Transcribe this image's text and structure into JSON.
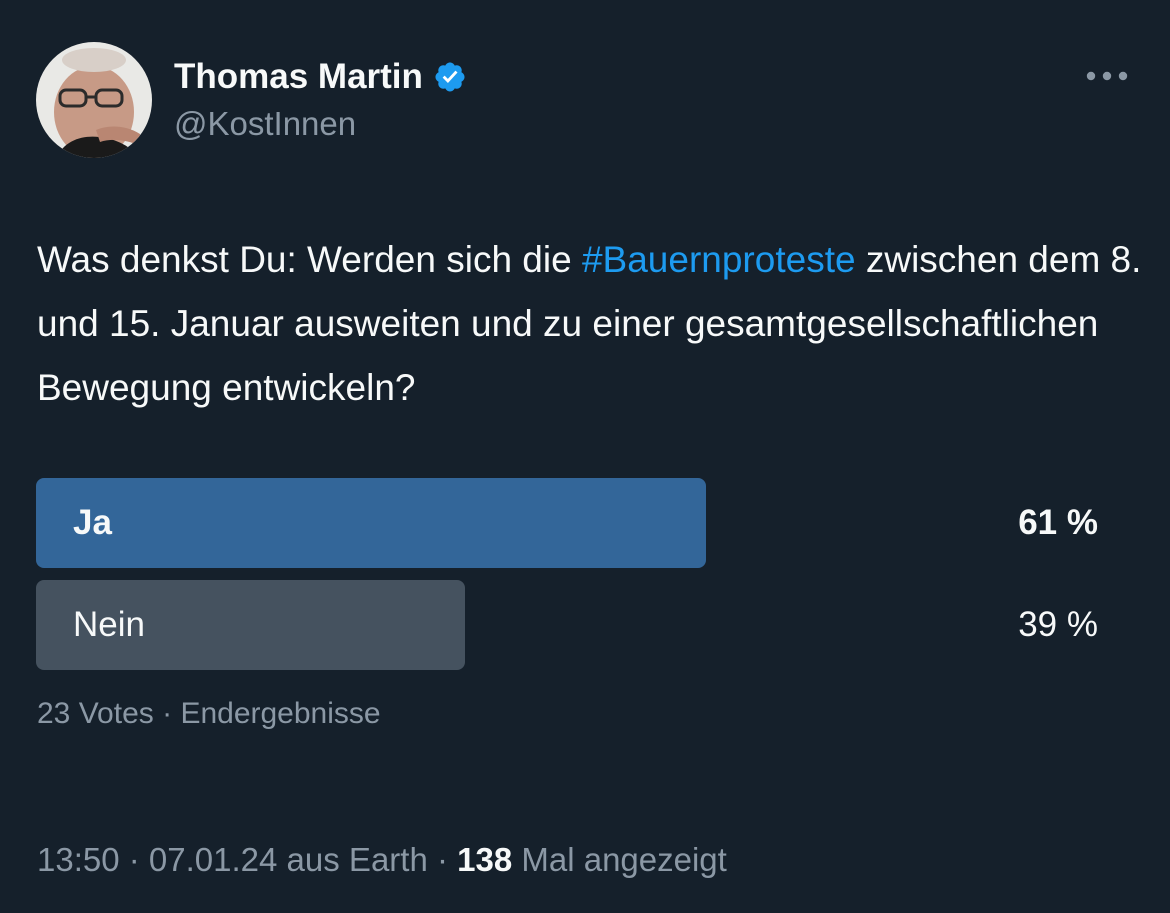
{
  "author": {
    "display_name": "Thomas Martin",
    "handle": "@KostInnen",
    "verified": true
  },
  "tweet": {
    "text_before": "Was denkst Du: Werden sich die ",
    "hashtag": "#Bauernproteste",
    "text_after": " zwischen dem 8. und 15. Januar ausweiten und zu einer gesamtgesellschaftlichen Bewegung entwickeln?"
  },
  "poll": {
    "options": [
      {
        "label": "Ja",
        "percent_text": "61 %",
        "percent": 61
      },
      {
        "label": "Nein",
        "percent_text": "39 %",
        "percent": 39
      }
    ],
    "votes": "23 Votes",
    "separator": " · ",
    "status": "Endergebnisse"
  },
  "footer": {
    "time": "13:50",
    "sep1": " · ",
    "date": "07.01.24",
    "source": " aus Earth",
    "sep2": " · ",
    "views_count": "138",
    "views_label": " Mal angezeigt"
  },
  "colors": {
    "background": "#15202b",
    "accent": "#1d9bf0",
    "winning_bar": "#336699",
    "losing_bar": "#45525f",
    "secondary_text": "#8b98a5"
  },
  "icons": {
    "more": "more-dots-icon",
    "verified": "verified-badge-icon"
  }
}
